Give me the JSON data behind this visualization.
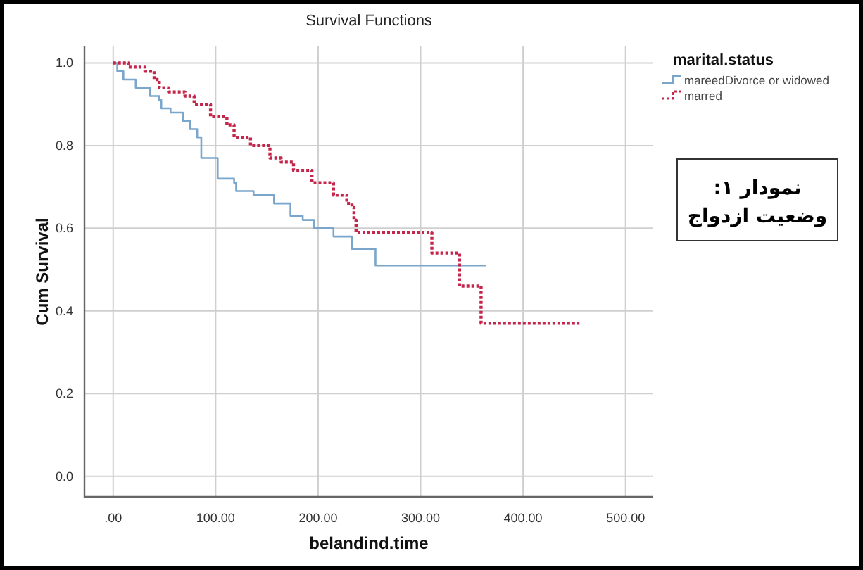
{
  "chart_data": {
    "type": "step",
    "title": "Survival Functions",
    "xlabel": "belandind.time",
    "ylabel": "Cum Survival",
    "legend_title": "marital.status",
    "xlim": [
      -28,
      527
    ],
    "ylim": [
      -0.05,
      1.04
    ],
    "xticks": [
      {
        "value": 0,
        "label": ".00"
      },
      {
        "value": 100,
        "label": "100.00"
      },
      {
        "value": 200,
        "label": "200.00"
      },
      {
        "value": 300,
        "label": "300.00"
      },
      {
        "value": 400,
        "label": "400.00"
      },
      {
        "value": 500,
        "label": "500.00"
      }
    ],
    "yticks": [
      {
        "value": 0,
        "label": "0.0"
      },
      {
        "value": 0.2,
        "label": "0.2"
      },
      {
        "value": 0.4,
        "label": "0.4"
      },
      {
        "value": 0.6,
        "label": "0.6"
      },
      {
        "value": 0.8,
        "label": "0.8"
      },
      {
        "value": 1,
        "label": "1.0"
      }
    ],
    "grid": true,
    "legend": "top right",
    "series": [
      {
        "name": "mareedDivorce or widowed",
        "color": "#7aa6cc",
        "line_style": "solid",
        "x": [
          0,
          4,
          10,
          22,
          36,
          45,
          47,
          56,
          68,
          75,
          82,
          86,
          102,
          118,
          120,
          137,
          157,
          173,
          185,
          196,
          215,
          233,
          256,
          364
        ],
        "values": [
          1.0,
          0.98,
          0.96,
          0.94,
          0.92,
          0.91,
          0.89,
          0.88,
          0.86,
          0.84,
          0.82,
          0.77,
          0.72,
          0.71,
          0.69,
          0.68,
          0.66,
          0.63,
          0.62,
          0.6,
          0.58,
          0.55,
          0.51,
          0.51
        ]
      },
      {
        "name": "marred",
        "color": "#c4254a",
        "line_style": "dotted",
        "x": [
          0,
          15,
          31,
          40,
          45,
          54,
          70,
          79,
          95,
          111,
          118,
          134,
          153,
          164,
          176,
          194,
          215,
          228,
          233,
          235,
          237,
          311,
          338,
          359,
          455
        ],
        "values": [
          1.0,
          0.99,
          0.98,
          0.96,
          0.94,
          0.93,
          0.92,
          0.9,
          0.87,
          0.85,
          0.82,
          0.8,
          0.77,
          0.76,
          0.74,
          0.71,
          0.68,
          0.66,
          0.65,
          0.62,
          0.59,
          0.54,
          0.46,
          0.37,
          0.37
        ]
      }
    ],
    "annotations": [
      "نمودار ۱:\nوضعیت ازدواج"
    ]
  }
}
